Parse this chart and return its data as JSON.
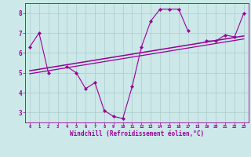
{
  "x_data": [
    0,
    1,
    2,
    3,
    4,
    5,
    6,
    7,
    8,
    9,
    10,
    11,
    12,
    13,
    14,
    15,
    16,
    17,
    18,
    19,
    20,
    21,
    22,
    23
  ],
  "y_data": [
    6.3,
    7.0,
    5.0,
    null,
    5.3,
    5.0,
    4.2,
    4.5,
    3.1,
    2.8,
    2.7,
    4.3,
    6.3,
    7.6,
    8.2,
    8.2,
    8.2,
    7.1,
    null,
    6.6,
    6.6,
    6.9,
    6.8,
    8.0
  ],
  "trend1_x": [
    0,
    23
  ],
  "trend1_y": [
    5.1,
    6.85
  ],
  "trend2_x": [
    0,
    23
  ],
  "trend2_y": [
    4.95,
    6.7
  ],
  "line_color": "#990099",
  "bg_color": "#cce8e8",
  "grid_color": "#aacccc",
  "xlabel": "Windchill (Refroidissement éolien,°C)",
  "xlim": [
    -0.5,
    23.5
  ],
  "ylim": [
    2.5,
    8.5
  ],
  "yticks": [
    3,
    4,
    5,
    6,
    7,
    8
  ],
  "xticks": [
    0,
    1,
    2,
    3,
    4,
    5,
    6,
    7,
    8,
    9,
    10,
    11,
    12,
    13,
    14,
    15,
    16,
    17,
    18,
    19,
    20,
    21,
    22,
    23
  ]
}
